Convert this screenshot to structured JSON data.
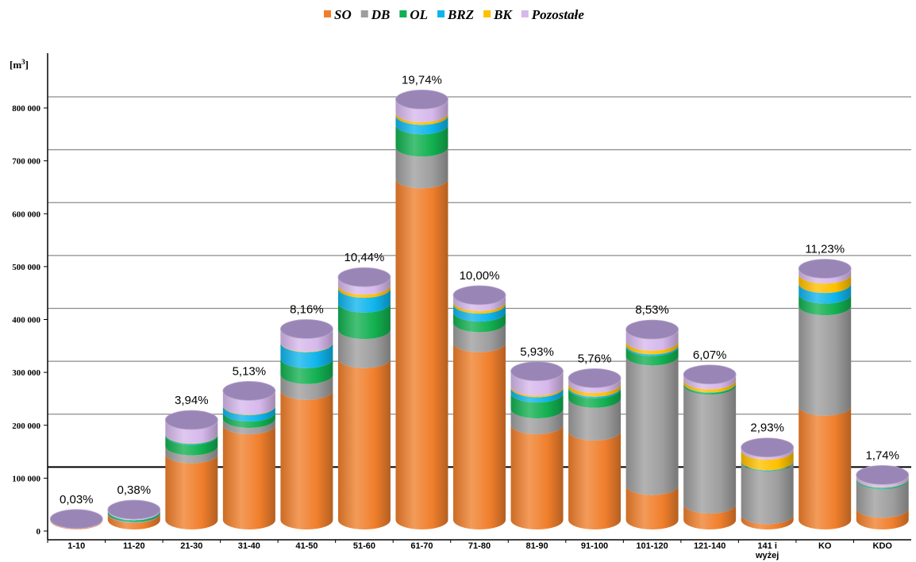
{
  "chart_data": {
    "type": "bar",
    "stacked": true,
    "bar_style": "3d-cylinder",
    "title": "",
    "ylabel_unit": "[m3]",
    "ylim": [
      0,
      800000
    ],
    "yticks": [
      0,
      100000,
      200000,
      300000,
      400000,
      500000,
      600000,
      700000,
      800000
    ],
    "ytick_labels": [
      "0",
      "100 000",
      "200 000",
      "300 000",
      "400 000",
      "500 000",
      "600 000",
      "700 000",
      "800 000"
    ],
    "grid": true,
    "legend_position": "top-center",
    "categories": [
      "1-10",
      "11-20",
      "21-30",
      "31-40",
      "41-50",
      "51-60",
      "61-70",
      "71-80",
      "81-90",
      "91-100",
      "101-120",
      "121-140",
      "141 i wyżej",
      "KO",
      "KDO"
    ],
    "category_lines": [
      [
        "1-10"
      ],
      [
        "11-20"
      ],
      [
        "21-30"
      ],
      [
        "31-40"
      ],
      [
        "41-50"
      ],
      [
        "51-60"
      ],
      [
        "61-70"
      ],
      [
        "71-80"
      ],
      [
        "81-90"
      ],
      [
        "91-100"
      ],
      [
        "101-120"
      ],
      [
        "121-140"
      ],
      [
        "141 i",
        "wyżej"
      ],
      [
        "KO"
      ],
      [
        "KDO"
      ]
    ],
    "percent_labels": [
      "0,03%",
      "0,38%",
      "3,94%",
      "5,13%",
      "8,16%",
      "10,44%",
      "19,74%",
      "10,00%",
      "5,93%",
      "5,76%",
      "8,53%",
      "6,07%",
      "2,93%",
      "11,23%",
      "1,74%"
    ],
    "series": [
      {
        "name": "SO",
        "color": "#f07f2c",
        "values": [
          1000,
          12000,
          125000,
          180000,
          245000,
          305000,
          645000,
          335000,
          180000,
          168000,
          65000,
          30000,
          10000,
          215000,
          22000
        ]
      },
      {
        "name": "DB",
        "color": "#9e9e9e",
        "values": [
          200,
          2000,
          15000,
          12000,
          30000,
          55000,
          60000,
          38000,
          30000,
          62000,
          245000,
          225000,
          100000,
          190000,
          54000
        ]
      },
      {
        "name": "OL",
        "color": "#12b050",
        "values": [
          300,
          3000,
          20000,
          12000,
          30000,
          50000,
          42000,
          20000,
          30000,
          18000,
          18000,
          3000,
          1000,
          22000,
          1000
        ]
      },
      {
        "name": "BRZ",
        "color": "#0fb4ec",
        "values": [
          100,
          600,
          2000,
          12000,
          30000,
          28000,
          18000,
          15000,
          10000,
          3000,
          3000,
          1000,
          1000,
          20000,
          2000
        ]
      },
      {
        "name": "BK",
        "color": "#ffc000",
        "values": [
          100,
          300,
          1000,
          1000,
          1000,
          6000,
          5000,
          5000,
          3000,
          7000,
          7000,
          6000,
          20000,
          18000,
          1000
        ]
      },
      {
        "name": "Pozostałe",
        "color": "#d6b8ec",
        "values": [
          100,
          1500,
          26000,
          27000,
          25000,
          15000,
          25000,
          12000,
          28000,
          10000,
          22000,
          10000,
          5000,
          10000,
          5000
        ]
      }
    ],
    "cap_color": "#9a86b6"
  }
}
